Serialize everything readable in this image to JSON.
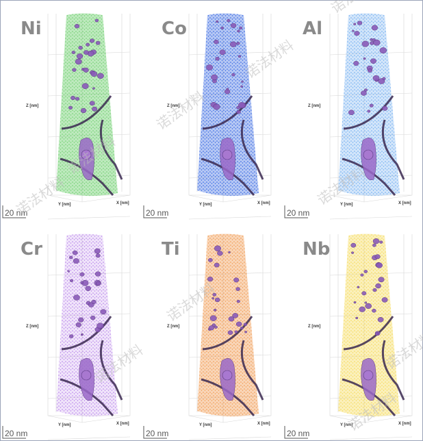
{
  "panels": [
    {
      "label": "Ni",
      "z_axis": "Z [nm]",
      "y_axis": "Y [nm]",
      "x_axis": "X [nm]",
      "scale_bar": "20 nm"
    },
    {
      "label": "Co",
      "z_axis": "Z [nm]",
      "y_axis": "Y [nm]",
      "x_axis": "X [nm]",
      "scale_bar": "20 nm"
    },
    {
      "label": "Al",
      "z_axis": "Z [nm]",
      "y_axis": "Y [nm]",
      "x_axis": "X [nm]",
      "scale_bar": "20 nm"
    },
    {
      "label": "Cr",
      "z_axis": "Z [nm]",
      "y_axis": "Y [nm]",
      "x_axis": "X [nm]",
      "scale_bar": "20 nm"
    },
    {
      "label": "Ti",
      "z_axis": "Z [nm]",
      "y_axis": "Y [nm]",
      "x_axis": "X [nm]",
      "scale_bar": "20 nm"
    },
    {
      "label": "Nb",
      "z_axis": "Z [nm]",
      "y_axis": "Y [nm]",
      "x_axis": "X [nm]",
      "scale_bar": "20 nm"
    }
  ],
  "watermark": "诺法材料"
}
